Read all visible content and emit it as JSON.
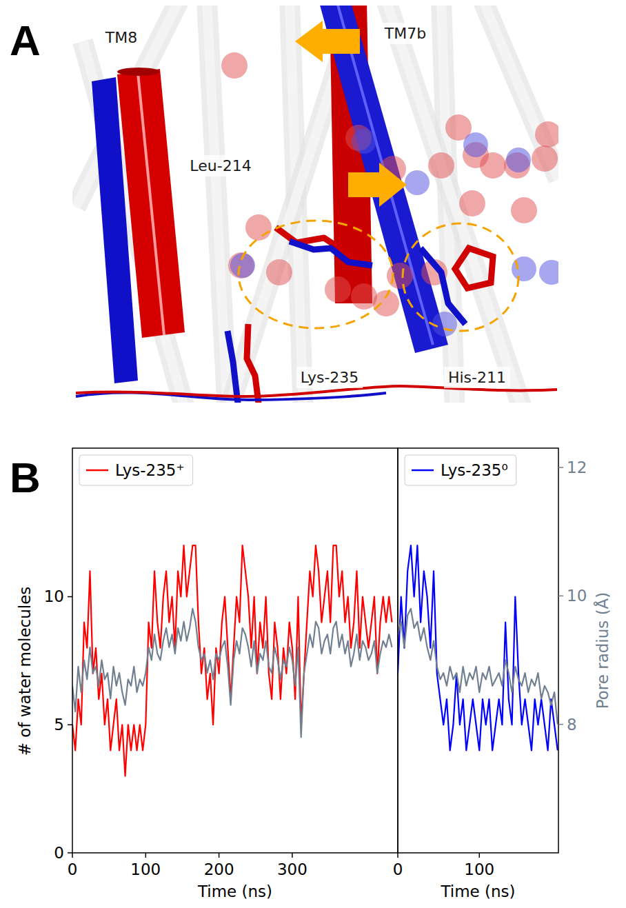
{
  "panels": [
    {
      "letter": "A",
      "labels": [
        "TM8",
        "TM7b",
        "Leu-214",
        "Lys-235",
        "His-211"
      ]
    },
    {
      "letter": "B"
    }
  ],
  "chart_data": [
    {
      "type": "line",
      "legend": "upper left",
      "xlabel": "Time (ns)",
      "ylabel": "# of water molecules",
      "xlim": [
        0,
        444
      ],
      "xticks": [
        0,
        100,
        200,
        300
      ],
      "ylim": [
        0,
        15.8
      ],
      "yticks": [
        0,
        5,
        10
      ],
      "y2lim": [
        6,
        12.3
      ],
      "x": [
        0,
        4,
        8,
        12,
        16,
        20,
        24,
        28,
        32,
        36,
        40,
        44,
        48,
        52,
        56,
        60,
        64,
        68,
        72,
        76,
        80,
        84,
        88,
        92,
        96,
        100,
        104,
        108,
        112,
        116,
        120,
        124,
        128,
        132,
        136,
        140,
        144,
        148,
        152,
        156,
        160,
        164,
        168,
        172,
        176,
        180,
        184,
        188,
        192,
        196,
        200,
        204,
        208,
        212,
        216,
        220,
        224,
        228,
        232,
        236,
        240,
        244,
        248,
        252,
        256,
        260,
        264,
        268,
        272,
        276,
        280,
        284,
        288,
        292,
        296,
        300,
        304,
        308,
        312,
        316,
        320,
        324,
        328,
        332,
        336,
        340,
        344,
        348,
        352,
        356,
        360,
        364,
        368,
        372,
        376,
        380,
        384,
        388,
        392,
        396,
        400,
        404,
        408,
        412,
        416,
        420,
        424,
        428,
        432,
        436
      ],
      "series": [
        {
          "name": "Lys-235⁺",
          "color": "#ff0000",
          "line_style": "solid",
          "values": [
            5,
            4,
            6,
            5,
            9,
            8,
            11,
            7,
            8,
            6,
            7,
            5,
            6,
            4,
            5,
            6,
            4,
            5,
            3,
            5,
            4,
            5,
            4,
            5,
            4,
            5,
            9,
            8,
            11,
            9,
            8,
            10,
            11,
            9,
            10,
            8,
            11,
            10,
            12,
            10,
            11,
            12,
            12,
            9,
            7,
            8,
            6,
            7,
            5,
            8,
            7,
            9,
            10,
            8,
            6,
            8,
            10,
            9,
            12,
            11,
            10,
            8,
            10,
            7,
            9,
            8,
            10,
            7,
            6,
            9,
            8,
            6,
            8,
            7,
            9,
            8,
            6,
            10,
            5,
            7,
            9,
            11,
            10,
            12,
            11,
            9,
            10,
            11,
            9,
            12,
            12,
            10,
            11,
            9,
            10,
            8,
            9,
            11,
            8,
            10,
            9,
            8,
            9,
            10,
            7,
            9,
            10,
            9,
            10,
            9
          ]
        },
        {
          "color": "#708090",
          "axis": "y2",
          "line_style": "solid",
          "values": [
            8.6,
            8.2,
            8.9,
            8.5,
            9.0,
            8.7,
            9.2,
            8.8,
            8.9,
            8.6,
            9.0,
            8.7,
            8.8,
            8.4,
            8.9,
            8.6,
            8.8,
            8.5,
            8.3,
            8.7,
            8.6,
            8.9,
            8.5,
            8.7,
            8.6,
            8.8,
            9.2,
            9.0,
            9.4,
            9.1,
            9.0,
            9.3,
            9.5,
            9.2,
            9.4,
            9.1,
            9.5,
            9.3,
            9.6,
            9.3,
            9.5,
            9.8,
            9.6,
            9.2,
            9.0,
            9.1,
            8.8,
            9.0,
            8.7,
            9.1,
            9.0,
            9.2,
            9.3,
            8.9,
            8.3,
            9.0,
            9.3,
            9.1,
            9.5,
            9.4,
            9.2,
            8.9,
            9.3,
            8.8,
            9.1,
            9.0,
            9.3,
            8.9,
            8.8,
            9.2,
            9.0,
            8.7,
            9.0,
            8.9,
            9.2,
            9.0,
            8.6,
            9.2,
            7.8,
            8.8,
            9.1,
            9.4,
            9.2,
            9.6,
            9.5,
            9.1,
            9.3,
            9.4,
            9.1,
            9.5,
            9.6,
            9.2,
            9.4,
            9.1,
            9.3,
            8.9,
            9.1,
            9.4,
            9.0,
            9.3,
            9.2,
            9.0,
            9.1,
            9.3,
            8.8,
            9.1,
            9.3,
            9.2,
            9.4,
            9.2
          ]
        }
      ]
    },
    {
      "type": "line",
      "legend": "upper left",
      "xlabel": "Time (ns)",
      "y2label": "Pore radius (Å)",
      "xlim": [
        0,
        197
      ],
      "xticks": [
        0,
        100
      ],
      "ylim": [
        0,
        15.8
      ],
      "y2lim": [
        6,
        12.3
      ],
      "y2ticks": [
        8,
        10,
        12
      ],
      "x": [
        0,
        4,
        8,
        12,
        16,
        20,
        24,
        28,
        32,
        36,
        40,
        44,
        48,
        52,
        56,
        60,
        64,
        68,
        72,
        76,
        80,
        84,
        88,
        92,
        96,
        100,
        104,
        108,
        112,
        116,
        120,
        124,
        128,
        132,
        136,
        140,
        144,
        148,
        152,
        156,
        160,
        164,
        168,
        172,
        176,
        180,
        184,
        188,
        192,
        196
      ],
      "series": [
        {
          "name": "Lys-235⁰",
          "color": "#0000ff",
          "line_style": "solid",
          "values": [
            7,
            10,
            8,
            11,
            12,
            10,
            12,
            9,
            11,
            10,
            8,
            11,
            7,
            6,
            5,
            6,
            4,
            5,
            7,
            5,
            6,
            4,
            5,
            6,
            5,
            4,
            6,
            5,
            6,
            4,
            5,
            6,
            5,
            9,
            6,
            5,
            10,
            7,
            5,
            6,
            5,
            4,
            6,
            5,
            6,
            5,
            4,
            6,
            5,
            4
          ]
        },
        {
          "color": "#708090",
          "axis": "y2",
          "line_style": "solid",
          "values": [
            9.4,
            9.6,
            9.2,
            9.7,
            9.8,
            9.5,
            9.6,
            9.3,
            9.5,
            9.2,
            9.0,
            9.3,
            8.9,
            8.7,
            8.8,
            8.6,
            8.9,
            8.7,
            8.8,
            8.5,
            8.9,
            8.6,
            8.8,
            8.7,
            8.9,
            8.5,
            8.8,
            8.7,
            8.9,
            8.6,
            8.7,
            8.8,
            8.6,
            9.0,
            8.8,
            8.5,
            8.9,
            8.7,
            8.6,
            8.8,
            8.5,
            8.7,
            8.6,
            8.8,
            8.4,
            8.6,
            8.5,
            8.3,
            8.5,
            8.0
          ]
        }
      ]
    }
  ]
}
